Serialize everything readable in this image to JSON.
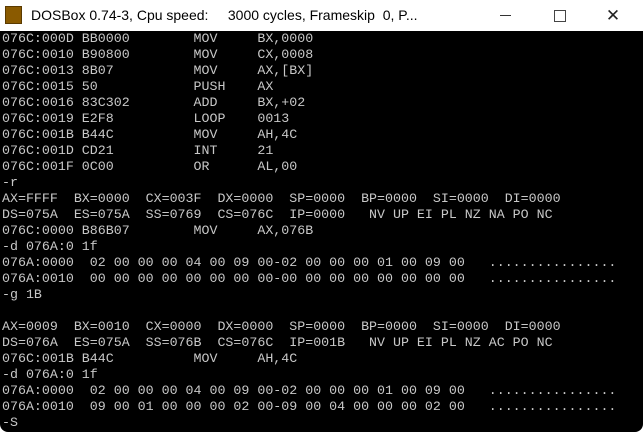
{
  "window": {
    "title": "DOSBox 0.74-3, Cpu speed:     3000 cycles, Frameskip  0, P...",
    "icon": "dosbox-icon",
    "icon_text": "DOS BOX",
    "minimize_label": "minimize",
    "maximize_label": "maximize",
    "close_label": "✕"
  },
  "console": {
    "lines": [
      "076C:000D BB0000        MOV     BX,0000",
      "076C:0010 B90800        MOV     CX,0008",
      "076C:0013 8B07          MOV     AX,[BX]",
      "076C:0015 50            PUSH    AX",
      "076C:0016 83C302        ADD     BX,+02",
      "076C:0019 E2F8          LOOP    0013",
      "076C:001B B44C          MOV     AH,4C",
      "076C:001D CD21          INT     21",
      "076C:001F 0C00          OR      AL,00",
      "-r",
      "AX=FFFF  BX=0000  CX=003F  DX=0000  SP=0000  BP=0000  SI=0000  DI=0000",
      "DS=075A  ES=075A  SS=0769  CS=076C  IP=0000   NV UP EI PL NZ NA PO NC",
      "076C:0000 B86B07        MOV     AX,076B",
      "-d 076A:0 1f",
      "076A:0000  02 00 00 00 04 00 09 00-02 00 00 00 01 00 09 00   ................",
      "076A:0010  00 00 00 00 00 00 00 00-00 00 00 00 00 00 00 00   ................",
      "-g 1B",
      "",
      "AX=0009  BX=0010  CX=0000  DX=0000  SP=0000  BP=0000  SI=0000  DI=0000",
      "DS=076A  ES=075A  SS=076B  CS=076C  IP=001B   NV UP EI PL NZ AC PO NC",
      "076C:001B B44C          MOV     AH,4C",
      "-d 076A:0 1f",
      "076A:0000  02 00 00 00 04 00 09 00-02 00 00 00 01 00 09 00   ................",
      "076A:0010  09 00 01 00 00 00 02 00-09 00 04 00 00 00 02 00   ................",
      "-S"
    ]
  }
}
